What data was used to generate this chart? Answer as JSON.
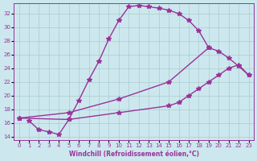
{
  "background_color": "#cce8ee",
  "grid_color": "#aacccc",
  "line_color": "#993399",
  "marker": "*",
  "markersize": 4,
  "linewidth": 1.0,
  "xlabel": "Windchill (Refroidissement éolien,°C)",
  "ylabel_ticks": [
    14,
    16,
    18,
    20,
    22,
    24,
    26,
    28,
    30,
    32
  ],
  "xlim": [
    -0.5,
    23.5
  ],
  "ylim": [
    13.5,
    33.5
  ],
  "xticks": [
    0,
    1,
    2,
    3,
    4,
    5,
    6,
    7,
    8,
    9,
    10,
    11,
    12,
    13,
    14,
    15,
    16,
    17,
    18,
    19,
    20,
    21,
    22,
    23
  ],
  "curve1_x": [
    1,
    2,
    3,
    4,
    5,
    6,
    7,
    8,
    9,
    10,
    11,
    12,
    13,
    14,
    15,
    16,
    17,
    18,
    19
  ],
  "curve1_y": [
    16.3,
    15.0,
    14.7,
    14.3,
    16.5,
    19.3,
    22.3,
    25.0,
    28.3,
    31.0,
    33.0,
    33.2,
    33.0,
    32.8,
    32.5,
    32.0,
    31.0,
    29.5,
    27.0
  ],
  "curve2_x": [
    0,
    5,
    10,
    15,
    16,
    17,
    18,
    19,
    20,
    21,
    22,
    23
  ],
  "curve2_y": [
    16.7,
    16.5,
    17.5,
    18.5,
    19.0,
    20.0,
    21.0,
    22.0,
    23.0,
    24.0,
    24.5,
    23.0
  ],
  "curve3_x": [
    0,
    5,
    10,
    15,
    19,
    20,
    21,
    22,
    23
  ],
  "curve3_y": [
    16.7,
    17.5,
    19.5,
    22.0,
    27.0,
    26.5,
    25.5,
    24.3,
    23.0
  ],
  "start_x": [
    0
  ],
  "start_y": [
    16.7
  ]
}
